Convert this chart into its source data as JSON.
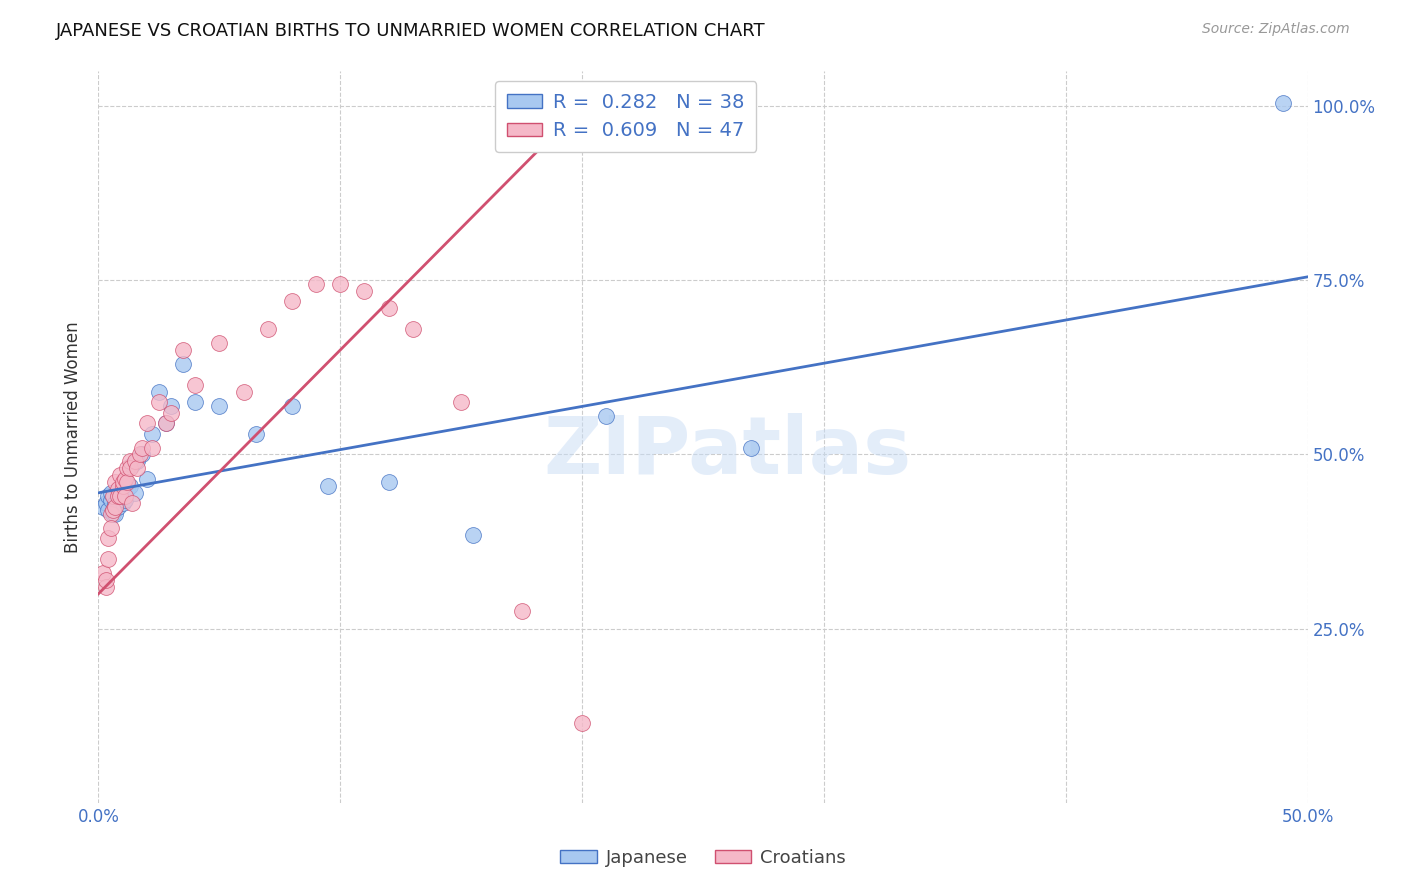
{
  "title": "JAPANESE VS CROATIAN BIRTHS TO UNMARRIED WOMEN CORRELATION CHART",
  "source": "Source: ZipAtlas.com",
  "ylabel": "Births to Unmarried Women",
  "xlim": [
    0.0,
    0.5
  ],
  "ylim": [
    0.0,
    1.05
  ],
  "yticks": [
    0.25,
    0.5,
    0.75,
    1.0
  ],
  "ytick_labels": [
    "25.0%",
    "50.0%",
    "75.0%",
    "100.0%"
  ],
  "xticks": [
    0.0,
    0.1,
    0.2,
    0.3,
    0.4,
    0.5
  ],
  "xtick_labels": [
    "0.0%",
    "",
    "",
    "",
    "",
    "50.0%"
  ],
  "legend_r_japanese": "R =  0.282",
  "legend_n_japanese": "N = 38",
  "legend_r_croatian": "R =  0.609",
  "legend_n_croatian": "N = 47",
  "color_japanese": "#A8C8F0",
  "color_croatian": "#F5B8C8",
  "trendline_japanese": "#4472C4",
  "trendline_croatian": "#D05070",
  "watermark": "ZIPatlas",
  "background_color": "#FFFFFF",
  "japanese_x": [
    0.002,
    0.003,
    0.004,
    0.004,
    0.005,
    0.005,
    0.006,
    0.006,
    0.007,
    0.007,
    0.008,
    0.008,
    0.009,
    0.01,
    0.01,
    0.011,
    0.012,
    0.013,
    0.014,
    0.015,
    0.016,
    0.018,
    0.02,
    0.022,
    0.025,
    0.028,
    0.03,
    0.035,
    0.04,
    0.05,
    0.065,
    0.08,
    0.095,
    0.12,
    0.155,
    0.21,
    0.27,
    0.49
  ],
  "japanese_y": [
    0.425,
    0.43,
    0.42,
    0.44,
    0.435,
    0.445,
    0.42,
    0.415,
    0.43,
    0.415,
    0.425,
    0.44,
    0.445,
    0.43,
    0.44,
    0.435,
    0.45,
    0.455,
    0.485,
    0.445,
    0.49,
    0.5,
    0.465,
    0.53,
    0.59,
    0.545,
    0.57,
    0.63,
    0.575,
    0.57,
    0.53,
    0.57,
    0.455,
    0.46,
    0.385,
    0.555,
    0.51,
    1.005
  ],
  "croatian_x": [
    0.002,
    0.003,
    0.003,
    0.004,
    0.004,
    0.005,
    0.005,
    0.006,
    0.006,
    0.007,
    0.007,
    0.008,
    0.008,
    0.009,
    0.009,
    0.01,
    0.01,
    0.011,
    0.011,
    0.012,
    0.012,
    0.013,
    0.013,
    0.014,
    0.015,
    0.016,
    0.017,
    0.018,
    0.02,
    0.022,
    0.025,
    0.028,
    0.03,
    0.035,
    0.04,
    0.05,
    0.06,
    0.07,
    0.08,
    0.09,
    0.1,
    0.11,
    0.12,
    0.13,
    0.15,
    0.175,
    0.2
  ],
  "croatian_y": [
    0.33,
    0.31,
    0.32,
    0.38,
    0.35,
    0.415,
    0.395,
    0.42,
    0.44,
    0.425,
    0.46,
    0.45,
    0.44,
    0.47,
    0.44,
    0.455,
    0.46,
    0.465,
    0.44,
    0.48,
    0.46,
    0.49,
    0.48,
    0.43,
    0.49,
    0.48,
    0.5,
    0.51,
    0.545,
    0.51,
    0.575,
    0.545,
    0.56,
    0.65,
    0.6,
    0.66,
    0.59,
    0.68,
    0.72,
    0.745,
    0.745,
    0.735,
    0.71,
    0.68,
    0.575,
    0.275,
    0.115
  ],
  "jp_trendline_x0": 0.0,
  "jp_trendline_y0": 0.445,
  "jp_trendline_x1": 0.5,
  "jp_trendline_y1": 0.755,
  "cr_trendline_x0": 0.0,
  "cr_trendline_y0": 0.3,
  "cr_trendline_x1": 0.2,
  "cr_trendline_y1": 1.0
}
